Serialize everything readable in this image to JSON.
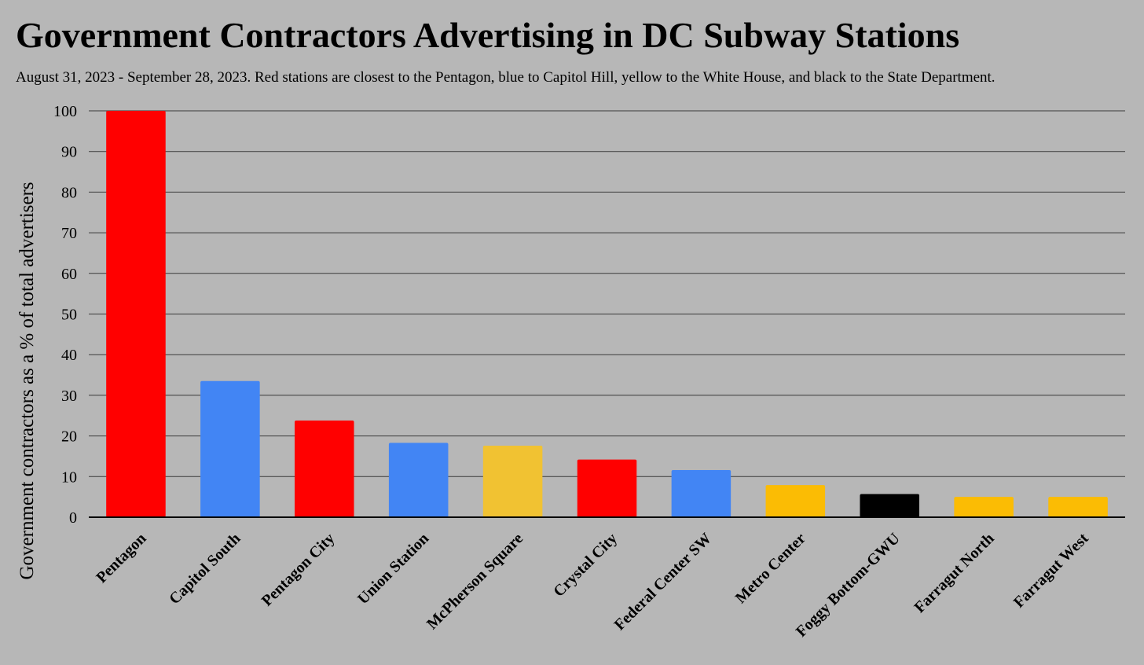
{
  "chart_data": {
    "type": "bar",
    "title": "Government Contractors Advertising in DC Subway Stations",
    "subtitle": "August 31, 2023 - September 28, 2023. Red stations are closest to the Pentagon, blue to Capitol Hill, yellow to the White House, and black to the State Department.",
    "xlabel": "",
    "ylabel": "Government contractors as a % of total advertisers",
    "ylim": [
      0,
      100
    ],
    "yticks": [
      0,
      10,
      20,
      30,
      40,
      50,
      60,
      70,
      80,
      90,
      100
    ],
    "grid": true,
    "categories": [
      "Pentagon",
      "Capitol South",
      "Pentagon City",
      "Union Station",
      "McPherson Square",
      "Crystal City",
      "Federal Center SW",
      "Metro Center",
      "Foggy Bottom-GWU",
      "Farragut North",
      "Farragut West"
    ],
    "values": [
      100,
      33.5,
      23.8,
      18.3,
      17.6,
      14.2,
      11.6,
      7.9,
      5.7,
      5.0,
      5.0
    ],
    "bar_colors": [
      "#ff0000",
      "#4285f4",
      "#ff0000",
      "#4285f4",
      "#f1c232",
      "#ff0000",
      "#4285f4",
      "#fbbc04",
      "#000000",
      "#fbbc04",
      "#fbbc04"
    ]
  }
}
